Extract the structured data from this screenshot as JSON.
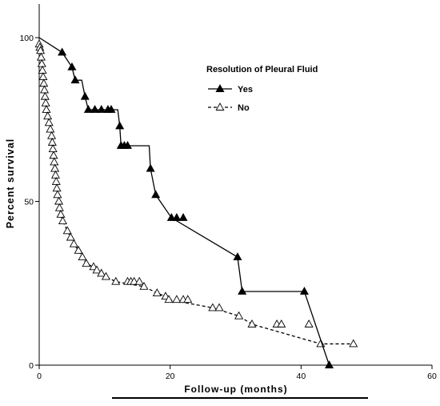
{
  "chart_data": {
    "type": "line",
    "title": "",
    "xlabel": "Follow-up (months)",
    "ylabel": "Percent survival",
    "xlim": [
      0,
      60
    ],
    "ylim": [
      0,
      100
    ],
    "x_ticks": [
      0,
      20,
      40,
      60
    ],
    "y_ticks": [
      0,
      50,
      100
    ],
    "grid": false,
    "legend": {
      "title": "Resolution of Pleural Fluid",
      "position": "top-right",
      "entries": [
        {
          "label": "Yes",
          "series": 0
        },
        {
          "label": "No",
          "series": 1
        }
      ]
    },
    "series": [
      {
        "name": "Yes",
        "style": "solid",
        "marker": "filled-triangle",
        "color": "#000000",
        "step": [
          [
            0,
            100
          ],
          [
            3.5,
            95.5
          ],
          [
            5,
            91
          ],
          [
            5.5,
            87
          ],
          [
            6.5,
            87
          ],
          [
            7,
            82
          ],
          [
            7.5,
            78
          ],
          [
            12,
            78
          ],
          [
            12.3,
            73
          ],
          [
            12.5,
            67
          ],
          [
            16.8,
            67
          ],
          [
            17,
            60
          ],
          [
            17.8,
            52
          ],
          [
            20.2,
            45
          ],
          [
            30.3,
            33
          ],
          [
            31,
            22.5
          ],
          [
            40.5,
            22.5
          ],
          [
            44.3,
            0
          ]
        ],
        "markers": [
          [
            3.5,
            95.5
          ],
          [
            5,
            91
          ],
          [
            5.5,
            87
          ],
          [
            7,
            82
          ],
          [
            7.5,
            78
          ],
          [
            8.5,
            78
          ],
          [
            9.5,
            78
          ],
          [
            10.5,
            78
          ],
          [
            11,
            78
          ],
          [
            12.3,
            73
          ],
          [
            12.5,
            67
          ],
          [
            13,
            67
          ],
          [
            13.5,
            67
          ],
          [
            17,
            60
          ],
          [
            17.8,
            52
          ],
          [
            20.2,
            45
          ],
          [
            21,
            45
          ],
          [
            22,
            45
          ],
          [
            30.3,
            33
          ],
          [
            31,
            22.5
          ],
          [
            40.5,
            22.5
          ],
          [
            44.3,
            0
          ]
        ]
      },
      {
        "name": "No",
        "style": "dashed",
        "marker": "open-triangle",
        "color": "#000000",
        "step": [
          [
            0,
            98
          ],
          [
            0.1,
            97
          ],
          [
            0.2,
            96
          ],
          [
            0.3,
            94
          ],
          [
            0.4,
            92
          ],
          [
            0.5,
            90
          ],
          [
            0.6,
            88
          ],
          [
            0.7,
            86
          ],
          [
            0.8,
            84
          ],
          [
            0.9,
            82
          ],
          [
            1.0,
            80
          ],
          [
            1.1,
            78
          ],
          [
            1.3,
            76
          ],
          [
            1.5,
            74
          ],
          [
            1.7,
            72
          ],
          [
            1.9,
            70
          ],
          [
            2.0,
            68
          ],
          [
            2.1,
            66
          ],
          [
            2.2,
            64
          ],
          [
            2.3,
            62
          ],
          [
            2.4,
            60
          ],
          [
            2.5,
            58
          ],
          [
            2.6,
            56
          ],
          [
            2.7,
            54
          ],
          [
            2.8,
            52
          ],
          [
            3.0,
            50
          ],
          [
            3.1,
            48
          ],
          [
            3.3,
            46
          ],
          [
            3.6,
            44
          ],
          [
            4.3,
            41
          ],
          [
            4.8,
            39
          ],
          [
            5.3,
            37
          ],
          [
            6.0,
            35
          ],
          [
            6.6,
            33
          ],
          [
            7.2,
            31
          ],
          [
            8.3,
            30
          ],
          [
            8.8,
            29
          ],
          [
            9.5,
            28
          ],
          [
            10.2,
            27
          ],
          [
            11.7,
            25.5
          ],
          [
            16,
            24
          ],
          [
            18,
            22
          ],
          [
            19.3,
            21
          ],
          [
            19.8,
            20
          ],
          [
            26.5,
            17.5
          ],
          [
            30.5,
            15
          ],
          [
            32.5,
            12.5
          ],
          [
            43,
            6.5
          ],
          [
            48,
            6.5
          ]
        ],
        "markers": [
          [
            0,
            98
          ],
          [
            0.1,
            97
          ],
          [
            0.2,
            96
          ],
          [
            0.3,
            94
          ],
          [
            0.4,
            92
          ],
          [
            0.5,
            90
          ],
          [
            0.6,
            88
          ],
          [
            0.7,
            86
          ],
          [
            0.8,
            84
          ],
          [
            0.9,
            82
          ],
          [
            1.0,
            80
          ],
          [
            1.1,
            78
          ],
          [
            1.3,
            76
          ],
          [
            1.5,
            74
          ],
          [
            1.7,
            72
          ],
          [
            1.9,
            70
          ],
          [
            2.0,
            68
          ],
          [
            2.1,
            66
          ],
          [
            2.2,
            64
          ],
          [
            2.3,
            62
          ],
          [
            2.4,
            60
          ],
          [
            2.5,
            58
          ],
          [
            2.6,
            56
          ],
          [
            2.7,
            54
          ],
          [
            2.8,
            52
          ],
          [
            3.0,
            50
          ],
          [
            3.1,
            48
          ],
          [
            3.3,
            46
          ],
          [
            3.6,
            44
          ],
          [
            4.3,
            41
          ],
          [
            4.8,
            39
          ],
          [
            5.3,
            37
          ],
          [
            6.0,
            35
          ],
          [
            6.6,
            33
          ],
          [
            7.2,
            31
          ],
          [
            8.3,
            30
          ],
          [
            8.8,
            29
          ],
          [
            9.5,
            28
          ],
          [
            10.2,
            27
          ],
          [
            11.7,
            25.5
          ],
          [
            13.5,
            25.5
          ],
          [
            14.0,
            25.5
          ],
          [
            14.5,
            25.5
          ],
          [
            15.3,
            25.5
          ],
          [
            16,
            24
          ],
          [
            18,
            22
          ],
          [
            19.3,
            21
          ],
          [
            19.8,
            20
          ],
          [
            21,
            20
          ],
          [
            22,
            20
          ],
          [
            22.7,
            20
          ],
          [
            26.5,
            17.5
          ],
          [
            27.5,
            17.5
          ],
          [
            30.5,
            15
          ],
          [
            32.5,
            12.5
          ],
          [
            36.3,
            12.5
          ],
          [
            37,
            12.5
          ],
          [
            41.2,
            12.5
          ],
          [
            43,
            6.5
          ],
          [
            48,
            6.5
          ]
        ]
      }
    ]
  }
}
